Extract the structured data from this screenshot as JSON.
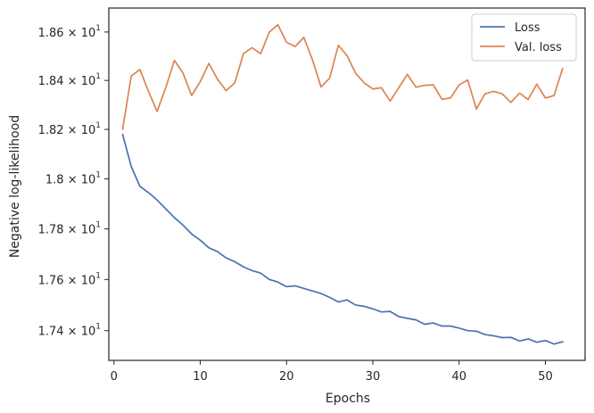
{
  "chart_data": {
    "type": "line",
    "title": "",
    "xlabel": "Epochs",
    "ylabel": "Negative log-likelihood",
    "xlim": [
      -0.6,
      54.6
    ],
    "ylim": [
      17.285,
      18.7
    ],
    "yscale": "log",
    "grid": false,
    "legend_position": "top-right",
    "x_ticks": [
      0,
      10,
      20,
      30,
      40,
      50
    ],
    "y_ticks": [
      {
        "value": 17.4,
        "base": "1.74",
        "mult": "× 10",
        "exp": "1"
      },
      {
        "value": 17.6,
        "base": "1.76",
        "mult": "× 10",
        "exp": "1"
      },
      {
        "value": 17.8,
        "base": "1.78",
        "mult": "× 10",
        "exp": "1"
      },
      {
        "value": 18.0,
        "base": "1.8",
        "mult": "× 10",
        "exp": "1"
      },
      {
        "value": 18.2,
        "base": "1.82",
        "mult": "× 10",
        "exp": "1"
      },
      {
        "value": 18.4,
        "base": "1.84",
        "mult": "× 10",
        "exp": "1"
      },
      {
        "value": 18.6,
        "base": "1.86",
        "mult": "× 10",
        "exp": "1"
      }
    ],
    "x": [
      1,
      2,
      3,
      4,
      5,
      6,
      7,
      8,
      9,
      10,
      11,
      12,
      13,
      14,
      15,
      16,
      17,
      18,
      19,
      20,
      21,
      22,
      23,
      24,
      25,
      26,
      27,
      28,
      29,
      30,
      31,
      32,
      33,
      34,
      35,
      36,
      37,
      38,
      39,
      40,
      41,
      42,
      43,
      44,
      45,
      46,
      47,
      48,
      49,
      50,
      51,
      52
    ],
    "series": [
      {
        "name": "Loss",
        "color": "#4c72b0",
        "values": [
          18.18,
          18.05,
          17.97,
          17.945,
          17.915,
          17.88,
          17.845,
          17.815,
          17.78,
          17.755,
          17.725,
          17.71,
          17.685,
          17.67,
          17.65,
          17.635,
          17.625,
          17.6,
          17.59,
          17.572,
          17.575,
          17.565,
          17.555,
          17.545,
          17.53,
          17.512,
          17.52,
          17.5,
          17.495,
          17.485,
          17.473,
          17.475,
          17.455,
          17.448,
          17.442,
          17.425,
          17.43,
          17.418,
          17.418,
          17.41,
          17.4,
          17.398,
          17.385,
          17.38,
          17.373,
          17.374,
          17.36,
          17.368,
          17.355,
          17.362,
          17.348,
          17.357
        ]
      },
      {
        "name": "Val. loss",
        "color": "#dd8452",
        "values": [
          18.2,
          18.418,
          18.445,
          18.355,
          18.273,
          18.37,
          18.483,
          18.43,
          18.338,
          18.395,
          18.47,
          18.405,
          18.358,
          18.39,
          18.51,
          18.535,
          18.51,
          18.6,
          18.63,
          18.557,
          18.54,
          18.578,
          18.485,
          18.373,
          18.41,
          18.545,
          18.503,
          18.43,
          18.39,
          18.365,
          18.37,
          18.315,
          18.37,
          18.425,
          18.372,
          18.38,
          18.382,
          18.323,
          18.328,
          18.382,
          18.402,
          18.283,
          18.345,
          18.355,
          18.345,
          18.31,
          18.348,
          18.322,
          18.385,
          18.328,
          18.338,
          18.45
        ]
      }
    ]
  }
}
